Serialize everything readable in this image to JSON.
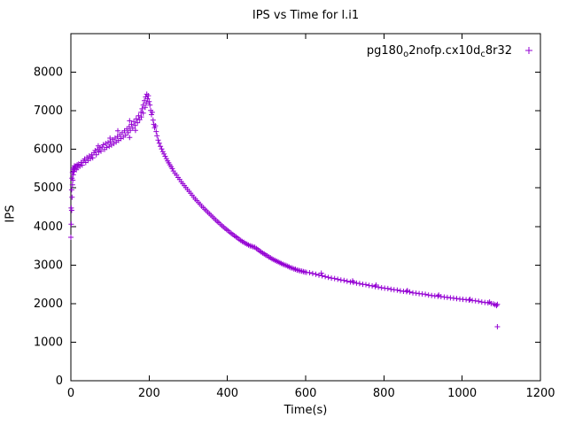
{
  "chart_data": {
    "type": "scatter",
    "title": "IPS vs Time for l.i1",
    "xlabel": "Time(s)",
    "ylabel": "IPS",
    "xlim": [
      0,
      1200
    ],
    "ylim": [
      0,
      9000
    ],
    "xticks": [
      0,
      200,
      400,
      600,
      800,
      1000,
      1200
    ],
    "yticks": [
      0,
      1000,
      2000,
      3000,
      4000,
      5000,
      6000,
      7000,
      8000
    ],
    "grid": false,
    "legend": {
      "position": "top-right-inside"
    },
    "series": [
      {
        "name": "pg180o2nofp.cx10dc8r32",
        "label_parts": [
          {
            "text": "pg180"
          },
          {
            "sub": "o"
          },
          {
            "text": "2nofp.cx10d"
          },
          {
            "sub": "c"
          },
          {
            "text": "8r32"
          }
        ],
        "marker": "+",
        "color": "#9400D3",
        "points": [
          [
            0,
            3720
          ],
          [
            1,
            4060
          ],
          [
            1,
            4480
          ],
          [
            2,
            4950
          ],
          [
            2,
            4420
          ],
          [
            3,
            5250
          ],
          [
            3,
            4760
          ],
          [
            4,
            5400
          ],
          [
            4,
            5080
          ],
          [
            5,
            5480
          ],
          [
            5,
            5200
          ],
          [
            6,
            5340
          ],
          [
            7,
            5520
          ],
          [
            8,
            5430
          ],
          [
            9,
            5570
          ],
          [
            10,
            5500
          ],
          [
            12,
            5560
          ],
          [
            14,
            5470
          ],
          [
            16,
            5600
          ],
          [
            18,
            5530
          ],
          [
            20,
            5620
          ],
          [
            23,
            5560
          ],
          [
            26,
            5660
          ],
          [
            29,
            5590
          ],
          [
            32,
            5700
          ],
          [
            35,
            5750
          ],
          [
            38,
            5660
          ],
          [
            41,
            5790
          ],
          [
            44,
            5710
          ],
          [
            47,
            5830
          ],
          [
            50,
            5760
          ],
          [
            53,
            5860
          ],
          [
            56,
            5780
          ],
          [
            59,
            5910
          ],
          [
            62,
            5970
          ],
          [
            65,
            5860
          ],
          [
            68,
            6000
          ],
          [
            70,
            6090
          ],
          [
            71,
            5930
          ],
          [
            74,
            6040
          ],
          [
            77,
            5950
          ],
          [
            80,
            6060
          ],
          [
            83,
            6120
          ],
          [
            86,
            6000
          ],
          [
            89,
            6150
          ],
          [
            92,
            6050
          ],
          [
            95,
            6180
          ],
          [
            98,
            6080
          ],
          [
            100,
            6290
          ],
          [
            101,
            6200
          ],
          [
            104,
            6110
          ],
          [
            107,
            6250
          ],
          [
            110,
            6150
          ],
          [
            113,
            6290
          ],
          [
            116,
            6190
          ],
          [
            119,
            6330
          ],
          [
            120,
            6480
          ],
          [
            122,
            6230
          ],
          [
            125,
            6380
          ],
          [
            128,
            6280
          ],
          [
            131,
            6430
          ],
          [
            134,
            6320
          ],
          [
            137,
            6480
          ],
          [
            140,
            6370
          ],
          [
            143,
            6530
          ],
          [
            146,
            6430
          ],
          [
            149,
            6590
          ],
          [
            150,
            6740
          ],
          [
            150,
            6310
          ],
          [
            152,
            6490
          ],
          [
            155,
            6650
          ],
          [
            158,
            6550
          ],
          [
            161,
            6720
          ],
          [
            164,
            6620
          ],
          [
            165,
            6490
          ],
          [
            167,
            6790
          ],
          [
            170,
            6690
          ],
          [
            173,
            6870
          ],
          [
            176,
            6770
          ],
          [
            179,
            6960
          ],
          [
            180,
            6840
          ],
          [
            182,
            7050
          ],
          [
            185,
            7150
          ],
          [
            185,
            6940
          ],
          [
            188,
            7260
          ],
          [
            190,
            7090
          ],
          [
            191,
            7360
          ],
          [
            193,
            7200
          ],
          [
            194,
            7430
          ],
          [
            196,
            7310
          ],
          [
            198,
            7390
          ],
          [
            200,
            7240
          ],
          [
            202,
            7150
          ],
          [
            204,
            7010
          ],
          [
            206,
            6900
          ],
          [
            208,
            6960
          ],
          [
            210,
            6760
          ],
          [
            212,
            6650
          ],
          [
            214,
            6560
          ],
          [
            216,
            6610
          ],
          [
            218,
            6460
          ],
          [
            220,
            6350
          ],
          [
            223,
            6240
          ],
          [
            226,
            6160
          ],
          [
            229,
            6080
          ],
          [
            232,
            6010
          ],
          [
            235,
            5940
          ],
          [
            238,
            5880
          ],
          [
            241,
            5820
          ],
          [
            244,
            5760
          ],
          [
            247,
            5700
          ],
          [
            250,
            5650
          ],
          [
            253,
            5600
          ],
          [
            256,
            5550
          ],
          [
            259,
            5500
          ],
          [
            262,
            5440
          ],
          [
            266,
            5380
          ],
          [
            270,
            5330
          ],
          [
            274,
            5270
          ],
          [
            278,
            5220
          ],
          [
            282,
            5160
          ],
          [
            286,
            5110
          ],
          [
            290,
            5060
          ],
          [
            294,
            5010
          ],
          [
            298,
            4960
          ],
          [
            302,
            4910
          ],
          [
            306,
            4860
          ],
          [
            310,
            4810
          ],
          [
            314,
            4760
          ],
          [
            318,
            4710
          ],
          [
            322,
            4670
          ],
          [
            326,
            4620
          ],
          [
            330,
            4580
          ],
          [
            334,
            4530
          ],
          [
            338,
            4490
          ],
          [
            342,
            4450
          ],
          [
            346,
            4410
          ],
          [
            350,
            4370
          ],
          [
            354,
            4330
          ],
          [
            358,
            4290
          ],
          [
            362,
            4250
          ],
          [
            366,
            4210
          ],
          [
            370,
            4170
          ],
          [
            374,
            4130
          ],
          [
            378,
            4100
          ],
          [
            382,
            4060
          ],
          [
            386,
            4020
          ],
          [
            390,
            3990
          ],
          [
            394,
            3950
          ],
          [
            398,
            3920
          ],
          [
            402,
            3890
          ],
          [
            406,
            3850
          ],
          [
            410,
            3820
          ],
          [
            414,
            3790
          ],
          [
            418,
            3760
          ],
          [
            422,
            3730
          ],
          [
            426,
            3700
          ],
          [
            430,
            3670
          ],
          [
            434,
            3640
          ],
          [
            438,
            3610
          ],
          [
            442,
            3590
          ],
          [
            446,
            3560
          ],
          [
            450,
            3540
          ],
          [
            454,
            3520
          ],
          [
            458,
            3500
          ],
          [
            462,
            3490
          ],
          [
            466,
            3470
          ],
          [
            470,
            3460
          ],
          [
            474,
            3430
          ],
          [
            478,
            3400
          ],
          [
            482,
            3370
          ],
          [
            486,
            3340
          ],
          [
            490,
            3310
          ],
          [
            494,
            3290
          ],
          [
            498,
            3260
          ],
          [
            502,
            3240
          ],
          [
            506,
            3210
          ],
          [
            510,
            3190
          ],
          [
            514,
            3160
          ],
          [
            518,
            3140
          ],
          [
            522,
            3120
          ],
          [
            526,
            3100
          ],
          [
            530,
            3080
          ],
          [
            534,
            3060
          ],
          [
            538,
            3040
          ],
          [
            542,
            3020
          ],
          [
            546,
            3000
          ],
          [
            550,
            2990
          ],
          [
            554,
            2970
          ],
          [
            558,
            2950
          ],
          [
            562,
            2930
          ],
          [
            566,
            2920
          ],
          [
            570,
            2900
          ],
          [
            574,
            2890
          ],
          [
            578,
            2870
          ],
          [
            582,
            2860
          ],
          [
            586,
            2850
          ],
          [
            590,
            2840
          ],
          [
            594,
            2830
          ],
          [
            598,
            2820
          ],
          [
            602,
            2810
          ],
          [
            610,
            2800
          ],
          [
            618,
            2780
          ],
          [
            626,
            2760
          ],
          [
            634,
            2740
          ],
          [
            640,
            2790
          ],
          [
            642,
            2720
          ],
          [
            650,
            2700
          ],
          [
            658,
            2680
          ],
          [
            666,
            2660
          ],
          [
            674,
            2650
          ],
          [
            682,
            2630
          ],
          [
            690,
            2610
          ],
          [
            698,
            2600
          ],
          [
            706,
            2580
          ],
          [
            714,
            2560
          ],
          [
            720,
            2590
          ],
          [
            722,
            2550
          ],
          [
            730,
            2530
          ],
          [
            738,
            2520
          ],
          [
            746,
            2500
          ],
          [
            754,
            2490
          ],
          [
            762,
            2470
          ],
          [
            770,
            2460
          ],
          [
            778,
            2440
          ],
          [
            780,
            2480
          ],
          [
            786,
            2430
          ],
          [
            794,
            2410
          ],
          [
            802,
            2400
          ],
          [
            810,
            2390
          ],
          [
            818,
            2370
          ],
          [
            826,
            2360
          ],
          [
            834,
            2350
          ],
          [
            842,
            2330
          ],
          [
            850,
            2320
          ],
          [
            858,
            2310
          ],
          [
            860,
            2340
          ],
          [
            866,
            2300
          ],
          [
            874,
            2280
          ],
          [
            882,
            2270
          ],
          [
            890,
            2260
          ],
          [
            898,
            2250
          ],
          [
            906,
            2240
          ],
          [
            914,
            2220
          ],
          [
            922,
            2210
          ],
          [
            930,
            2200
          ],
          [
            938,
            2190
          ],
          [
            940,
            2220
          ],
          [
            946,
            2180
          ],
          [
            954,
            2170
          ],
          [
            962,
            2160
          ],
          [
            970,
            2150
          ],
          [
            978,
            2140
          ],
          [
            986,
            2130
          ],
          [
            994,
            2120
          ],
          [
            1002,
            2110
          ],
          [
            1010,
            2100
          ],
          [
            1018,
            2090
          ],
          [
            1020,
            2110
          ],
          [
            1026,
            2080
          ],
          [
            1034,
            2070
          ],
          [
            1042,
            2060
          ],
          [
            1050,
            2040
          ],
          [
            1058,
            2030
          ],
          [
            1066,
            2020
          ],
          [
            1070,
            2040
          ],
          [
            1074,
            2000
          ],
          [
            1080,
            1990
          ],
          [
            1084,
            1970
          ],
          [
            1088,
            1950
          ],
          [
            1090,
            1980
          ],
          [
            1090,
            1400
          ]
        ]
      }
    ]
  }
}
